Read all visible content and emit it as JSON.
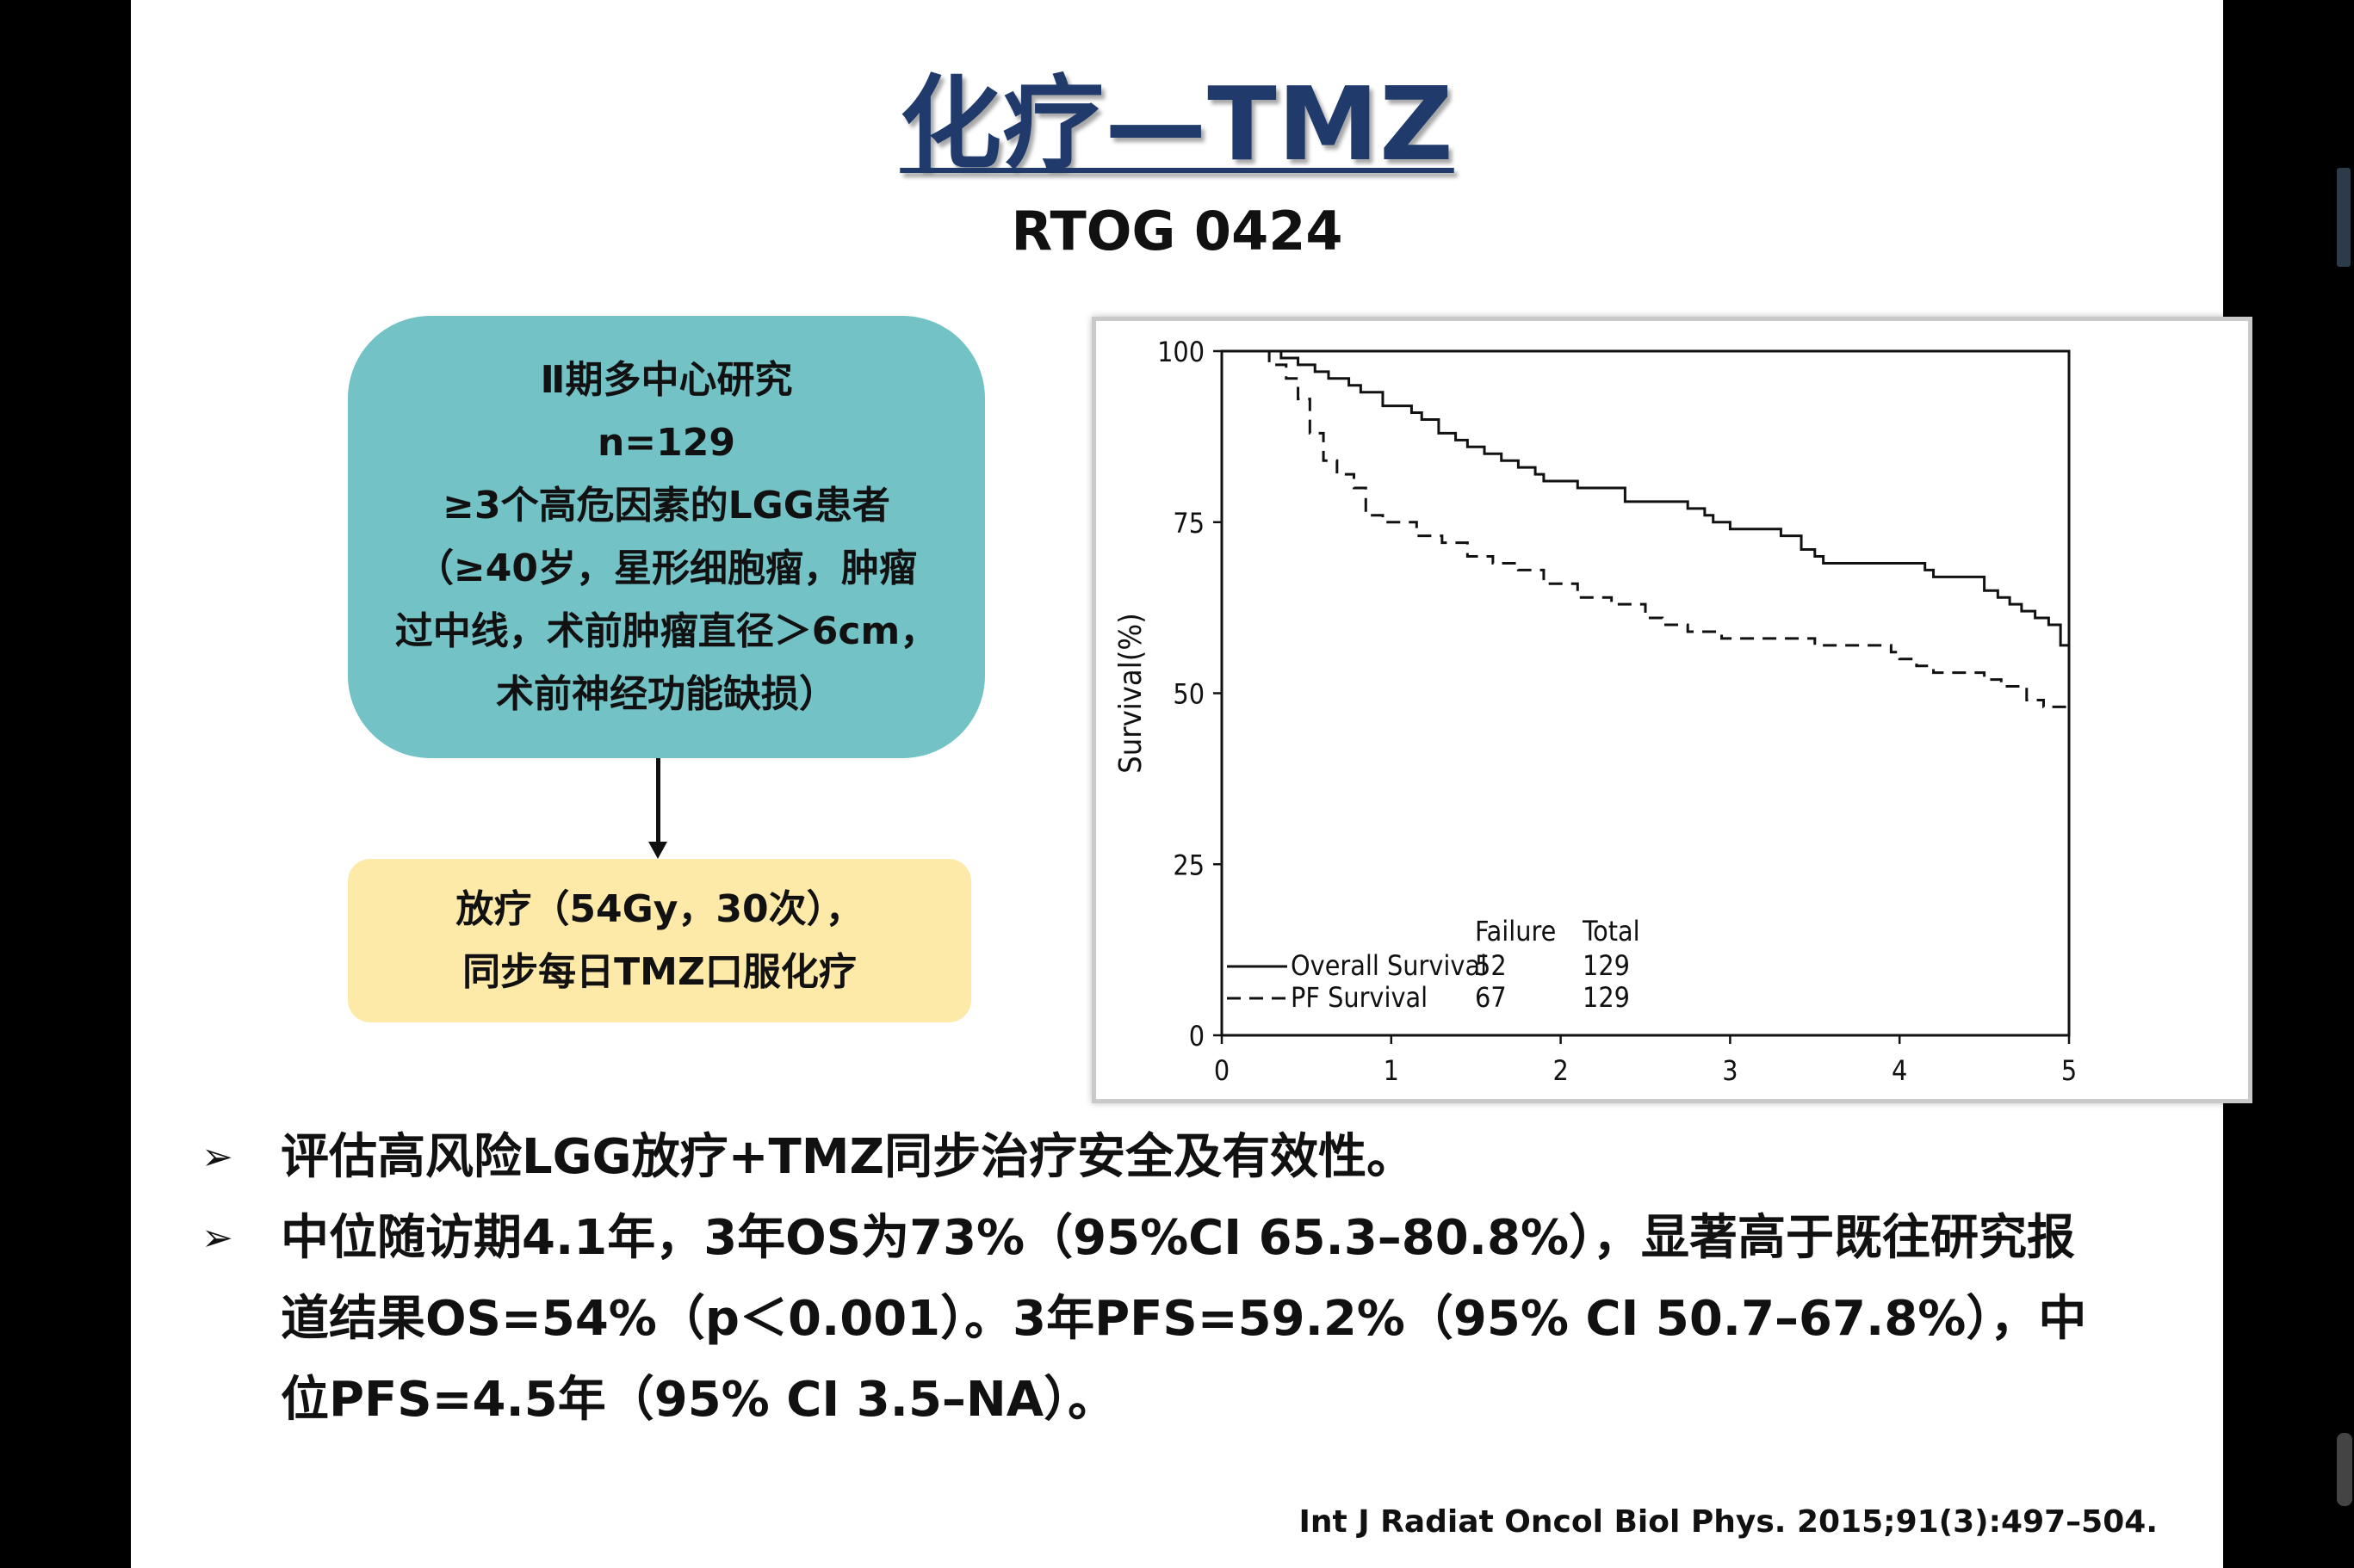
{
  "slide": {
    "title": "化疗—TMZ",
    "subtitle": "RTOG 0424"
  },
  "box1": {
    "lines": [
      "Ⅱ期多中心研究",
      "n=129",
      "≥3个高危因素的LGG患者",
      "（≥40岁，星形细胞瘤，肿瘤",
      "过中线，术前肿瘤直径＞6cm，",
      "术前神经功能缺损）"
    ]
  },
  "box2": {
    "lines": [
      "放疗（54Gy，30次），",
      "同步每日TMZ口服化疗"
    ]
  },
  "bullets": [
    "评估高风险LGG放疗+TMZ同步治疗安全及有效性。",
    "中位随访期4.1年，3年OS为73%（95%CI 65.3–80.8%），显著高于既往研究报",
    "道结果OS=54%（p＜0.001）。3年PFS=59.2%（95% CI 50.7–67.8%），中",
    "位PFS=4.5年（95% CI 3.5–NA）。"
  ],
  "bullet_mark": "➢",
  "citation": "Int J Radiat Oncol Biol Phys. 2015;91(3):497–504.",
  "chart_data": {
    "type": "line",
    "title": "",
    "xlabel": "",
    "ylabel": "Survival(%)",
    "xlim": [
      0,
      5
    ],
    "ylim": [
      0,
      100
    ],
    "xticks": [
      "0",
      "1",
      "2",
      "3",
      "4",
      "5"
    ],
    "yticks": [
      "0",
      "25",
      "50",
      "75",
      "100"
    ],
    "grid": false,
    "legend": {
      "placement": "bottom-left",
      "headers": [
        "Failure",
        "Total"
      ],
      "entries": [
        {
          "name": "Overall Survival",
          "failure": "52",
          "total": "129",
          "style": "solid"
        },
        {
          "name": "PF Survival",
          "failure": "67",
          "total": "129",
          "style": "dashed"
        }
      ]
    },
    "series": [
      {
        "name": "Overall Survival",
        "style": "solid",
        "x": [
          0,
          0.32,
          0.35,
          0.45,
          0.55,
          0.63,
          0.75,
          0.82,
          0.95,
          1.12,
          1.18,
          1.28,
          1.38,
          1.45,
          1.55,
          1.65,
          1.75,
          1.85,
          1.9,
          2.0,
          2.1,
          2.3,
          2.38,
          2.6,
          2.75,
          2.85,
          2.9,
          3.0,
          3.1,
          3.3,
          3.42,
          3.5,
          3.55,
          3.65,
          3.8,
          3.95,
          4.1,
          4.15,
          4.2,
          4.3,
          4.4,
          4.5,
          4.58,
          4.65,
          4.72,
          4.8,
          4.88,
          4.95,
          5.0
        ],
        "y": [
          100,
          100,
          99,
          98,
          97,
          96,
          95,
          94,
          92,
          91,
          90,
          88,
          87,
          86,
          85,
          84,
          83,
          82,
          81,
          81,
          80,
          80,
          78,
          78,
          77,
          76,
          75,
          74,
          74,
          73,
          71,
          70,
          69,
          69,
          69,
          69,
          69,
          68,
          67,
          67,
          67,
          65,
          64,
          63,
          62,
          61,
          60,
          57,
          57
        ]
      },
      {
        "name": "PF Survival",
        "style": "dashed",
        "x": [
          0,
          0.22,
          0.28,
          0.38,
          0.45,
          0.52,
          0.6,
          0.68,
          0.78,
          0.85,
          0.95,
          1.05,
          1.15,
          1.3,
          1.45,
          1.6,
          1.75,
          1.9,
          2.1,
          2.3,
          2.5,
          2.6,
          2.75,
          2.95,
          3.1,
          3.3,
          3.5,
          3.8,
          3.95,
          4.0,
          4.1,
          4.2,
          4.35,
          4.5,
          4.6,
          4.75,
          4.85,
          5.0
        ],
        "y": [
          100,
          100,
          98,
          96,
          93,
          88,
          84,
          82,
          80,
          76,
          75,
          75,
          73,
          72,
          70,
          69,
          68,
          66,
          64,
          63,
          61,
          60,
          59,
          58,
          58,
          58,
          57,
          57,
          56,
          55,
          54,
          53,
          53,
          52,
          51,
          49,
          48,
          45
        ]
      }
    ]
  }
}
